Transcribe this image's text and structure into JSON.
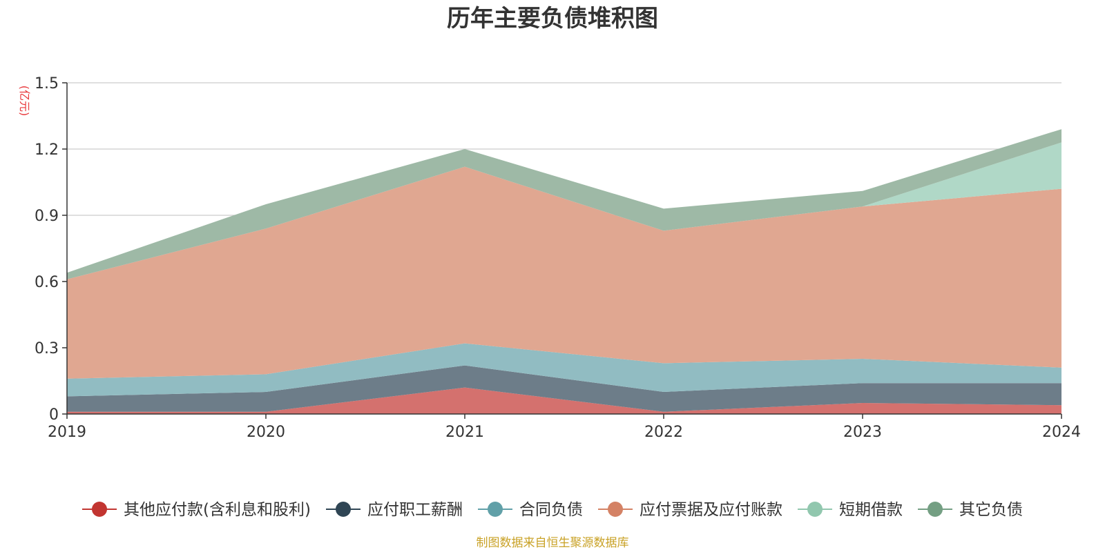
{
  "chart_data": {
    "type": "area",
    "stacked": true,
    "title": "历年主要负债堆积图",
    "unit": "(亿元)",
    "categories": [
      "2019",
      "2020",
      "2021",
      "2022",
      "2023",
      "2024"
    ],
    "ylim": [
      0,
      1.5
    ],
    "yticks": [
      "0",
      "0.3",
      "0.6",
      "0.9",
      "1.2",
      "1.5"
    ],
    "grid": true,
    "legend_position": "bottom",
    "series": [
      {
        "name": "其他应付款(含利息和股利)",
        "color": "#c23531",
        "fill": "#d4716e",
        "values": [
          0.01,
          0.01,
          0.12,
          0.01,
          0.05,
          0.04
        ]
      },
      {
        "name": "应付职工薪酬",
        "color": "#2f4554",
        "fill": "#6d7d89",
        "values": [
          0.07,
          0.09,
          0.1,
          0.09,
          0.09,
          0.1
        ]
      },
      {
        "name": "合同负债",
        "color": "#61a0a8",
        "fill": "#91bcc2",
        "values": [
          0.08,
          0.08,
          0.1,
          0.13,
          0.11,
          0.07
        ]
      },
      {
        "name": "应付票据及应付账款",
        "color": "#d48265",
        "fill": "#e0a791",
        "values": [
          0.45,
          0.66,
          0.8,
          0.6,
          0.69,
          0.81
        ]
      },
      {
        "name": "短期借款",
        "color": "#91c7ae",
        "fill": "#b0d8c7",
        "values": [
          0.0,
          0.0,
          0.0,
          0.0,
          0.0,
          0.21
        ]
      },
      {
        "name": "其它负债",
        "color": "#749f83",
        "fill": "#9eb9a6",
        "values": [
          0.03,
          0.11,
          0.08,
          0.1,
          0.07,
          0.06
        ]
      }
    ]
  },
  "source": "制图数据来自恒生聚源数据库"
}
